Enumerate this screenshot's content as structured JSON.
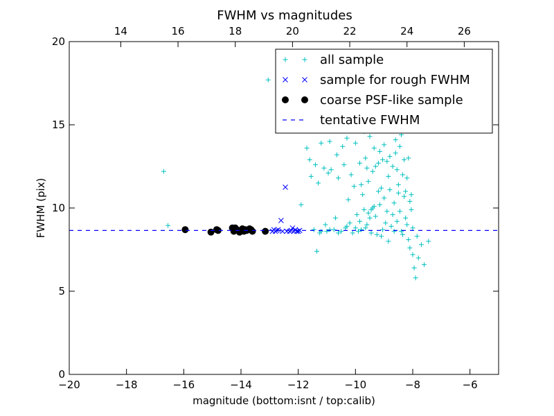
{
  "chart_data": {
    "type": "scatter",
    "title": "FWHM vs magnitudes",
    "xlabel": "magnitude (bottom:isnt / top:calib)",
    "ylabel": "FWHM (pix)",
    "xlim": [
      -20,
      -5
    ],
    "ylim": [
      0,
      20
    ],
    "top_xlim": [
      12.2,
      27.2
    ],
    "x_ticks": [
      "−20",
      "−18",
      "−16",
      "−14",
      "−12",
      "−10",
      "−8",
      "−6"
    ],
    "x_tick_values": [
      -20,
      -18,
      -16,
      -14,
      -12,
      -10,
      -8,
      -6
    ],
    "top_x_ticks": [
      "14",
      "16",
      "18",
      "20",
      "22",
      "24",
      "26"
    ],
    "top_x_tick_values": [
      14,
      16,
      18,
      20,
      22,
      24,
      26
    ],
    "y_ticks": [
      "0",
      "5",
      "10",
      "15",
      "20"
    ],
    "y_tick_values": [
      0,
      5,
      10,
      15,
      20
    ],
    "grid": false,
    "legend_position": "top-right",
    "series": [
      {
        "name": "all sample",
        "marker": "plus",
        "color": "#00bfbf",
        "points": [
          [
            -16.7,
            12.2
          ],
          [
            -16.55,
            8.95
          ],
          [
            -13.05,
            17.7
          ],
          [
            -12.0,
            8.6
          ],
          [
            -11.9,
            10.2
          ],
          [
            -11.7,
            13.6
          ],
          [
            -11.6,
            12.9
          ],
          [
            -11.55,
            11.9
          ],
          [
            -11.45,
            8.7
          ],
          [
            -11.4,
            12.6
          ],
          [
            -11.35,
            7.4
          ],
          [
            -11.3,
            11.5
          ],
          [
            -11.25,
            8.5
          ],
          [
            -11.2,
            13.9
          ],
          [
            -11.1,
            12.4
          ],
          [
            -11.05,
            9.0
          ],
          [
            -11.0,
            8.6
          ],
          [
            -10.95,
            12.1
          ],
          [
            -10.9,
            14.0
          ],
          [
            -10.85,
            12.3
          ],
          [
            -10.75,
            8.7
          ],
          [
            -10.7,
            9.4
          ],
          [
            -10.65,
            13.2
          ],
          [
            -10.6,
            11.8
          ],
          [
            -10.5,
            8.6
          ],
          [
            -10.45,
            13.7
          ],
          [
            -10.4,
            12.6
          ],
          [
            -10.35,
            8.8
          ],
          [
            -10.3,
            14.2
          ],
          [
            -10.25,
            10.5
          ],
          [
            -10.2,
            9.1
          ],
          [
            -10.15,
            12.0
          ],
          [
            -10.1,
            8.5
          ],
          [
            -10.05,
            11.3
          ],
          [
            -10.0,
            13.9
          ],
          [
            -9.95,
            9.6
          ],
          [
            -9.9,
            15.0
          ],
          [
            -9.85,
            12.7
          ],
          [
            -9.8,
            8.7
          ],
          [
            -9.75,
            10.8
          ],
          [
            -9.7,
            14.6
          ],
          [
            -9.65,
            13.0
          ],
          [
            -9.6,
            9.0
          ],
          [
            -9.55,
            11.6
          ],
          [
            -9.5,
            14.3
          ],
          [
            -9.45,
            8.5
          ],
          [
            -9.4,
            12.2
          ],
          [
            -9.35,
            10.1
          ],
          [
            -9.3,
            9.5
          ],
          [
            -9.25,
            15.4
          ],
          [
            -9.2,
            11.0
          ],
          [
            -9.15,
            13.4
          ],
          [
            -9.1,
            8.3
          ],
          [
            -9.05,
            12.9
          ],
          [
            -9.0,
            10.6
          ],
          [
            -8.95,
            14.8
          ],
          [
            -8.9,
            9.8
          ],
          [
            -8.85,
            11.9
          ],
          [
            -8.8,
            13.1
          ],
          [
            -8.75,
            8.9
          ],
          [
            -8.7,
            12.5
          ],
          [
            -8.65,
            10.3
          ],
          [
            -8.6,
            14.1
          ],
          [
            -8.55,
            9.2
          ],
          [
            -8.5,
            11.4
          ],
          [
            -8.45,
            13.7
          ],
          [
            -8.4,
            8.6
          ],
          [
            -8.35,
            12.0
          ],
          [
            -8.3,
            10.7
          ],
          [
            -8.25,
            9.4
          ],
          [
            -8.2,
            11.8
          ],
          [
            -8.15,
            8.1
          ],
          [
            -8.1,
            7.6
          ],
          [
            -8.05,
            9.9
          ],
          [
            -8.0,
            7.2
          ],
          [
            -7.95,
            6.4
          ],
          [
            -7.9,
            5.8
          ],
          [
            -7.85,
            8.3
          ],
          [
            -7.8,
            7.0
          ],
          [
            -7.7,
            7.8
          ],
          [
            -7.6,
            6.6
          ],
          [
            -7.45,
            8.0
          ],
          [
            -9.9,
            8.6
          ],
          [
            -9.7,
            9.9
          ],
          [
            -9.5,
            9.4
          ],
          [
            -9.3,
            12.5
          ],
          [
            -9.1,
            11.2
          ],
          [
            -8.9,
            12.8
          ],
          [
            -8.7,
            9.6
          ],
          [
            -8.5,
            10.9
          ],
          [
            -8.3,
            12.9
          ],
          [
            -8.2,
            9.0
          ],
          [
            -8.1,
            10.4
          ],
          [
            -8.0,
            8.8
          ],
          [
            -8.4,
            14.4
          ],
          [
            -8.6,
            13.3
          ],
          [
            -8.8,
            11.1
          ],
          [
            -9.0,
            13.8
          ],
          [
            -9.2,
            12.7
          ],
          [
            -9.4,
            10.0
          ],
          [
            -9.6,
            12.4
          ],
          [
            -9.8,
            11.4
          ],
          [
            -10.0,
            8.8
          ],
          [
            -10.3,
            8.9
          ],
          [
            -10.6,
            8.5
          ],
          [
            -10.9,
            8.7
          ],
          [
            -11.2,
            8.6
          ],
          [
            -8.3,
            15.2
          ],
          [
            -8.45,
            9.8
          ],
          [
            -8.55,
            12.3
          ],
          [
            -8.75,
            14.7
          ],
          [
            -8.95,
            9.1
          ],
          [
            -9.15,
            10.2
          ],
          [
            -9.35,
            13.6
          ],
          [
            -9.55,
            9.7
          ],
          [
            -8.25,
            11.0
          ],
          [
            -8.15,
            13.0
          ],
          [
            -8.05,
            10.8
          ],
          [
            -8.35,
            8.4
          ],
          [
            -8.65,
            8.6
          ],
          [
            -8.85,
            8.0
          ],
          [
            -9.05,
            8.7
          ],
          [
            -9.25,
            8.4
          ],
          [
            -9.45,
            9.9
          ],
          [
            -9.65,
            8.8
          ],
          [
            -9.85,
            9.2
          ]
        ]
      },
      {
        "name": "sample for rough FWHM",
        "marker": "x",
        "color": "#0000ff",
        "points": [
          [
            -12.9,
            8.6
          ],
          [
            -12.85,
            8.7
          ],
          [
            -12.8,
            8.6
          ],
          [
            -12.75,
            8.65
          ],
          [
            -12.7,
            8.7
          ],
          [
            -12.6,
            9.25
          ],
          [
            -12.55,
            8.6
          ],
          [
            -12.45,
            11.25
          ],
          [
            -12.4,
            8.6
          ],
          [
            -12.3,
            8.6
          ],
          [
            -12.25,
            8.65
          ],
          [
            -12.2,
            8.8
          ],
          [
            -12.15,
            8.6
          ],
          [
            -12.1,
            8.7
          ],
          [
            -12.05,
            8.6
          ],
          [
            -12.0,
            8.6
          ],
          [
            -11.95,
            8.65
          ]
        ]
      },
      {
        "name": "coarse PSF-like sample",
        "marker": "dot",
        "color": "#000000",
        "points": [
          [
            -15.95,
            8.7
          ],
          [
            -15.05,
            8.55
          ],
          [
            -14.85,
            8.7
          ],
          [
            -14.8,
            8.65
          ],
          [
            -14.3,
            8.8
          ],
          [
            -14.25,
            8.6
          ],
          [
            -14.2,
            8.8
          ],
          [
            -14.15,
            8.7
          ],
          [
            -14.1,
            8.65
          ],
          [
            -14.05,
            8.55
          ],
          [
            -13.95,
            8.75
          ],
          [
            -13.9,
            8.6
          ],
          [
            -13.85,
            8.7
          ],
          [
            -13.8,
            8.65
          ],
          [
            -13.7,
            8.75
          ],
          [
            -13.65,
            8.7
          ],
          [
            -13.6,
            8.6
          ],
          [
            -13.15,
            8.6
          ]
        ]
      },
      {
        "name": "tentative FWHM",
        "type": "hline",
        "style": "dashed",
        "color": "#0000ff",
        "value": 8.65
      }
    ]
  }
}
